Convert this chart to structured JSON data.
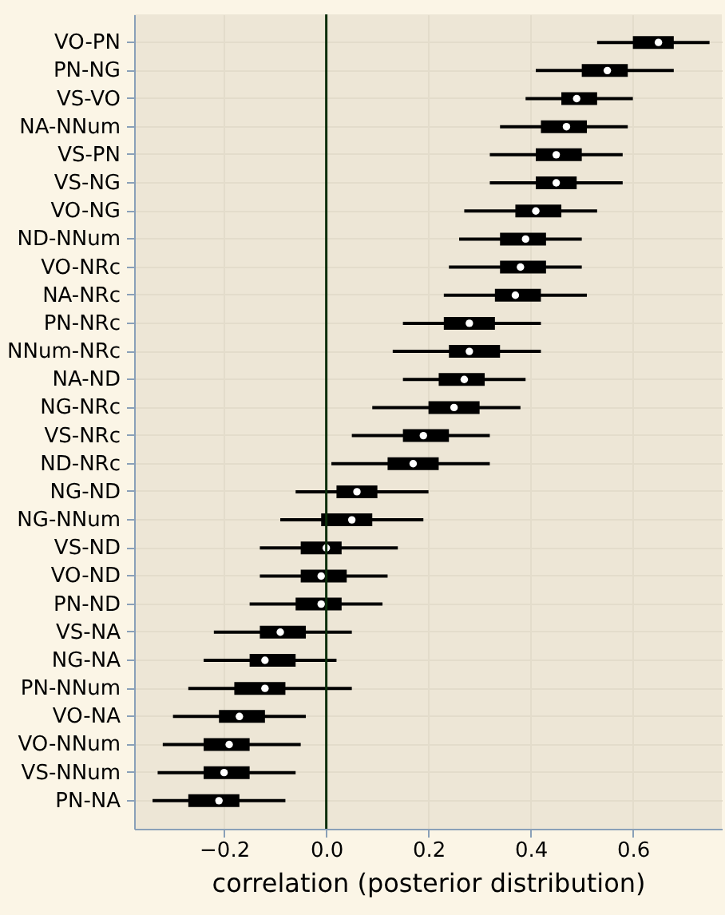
{
  "chart_data": {
    "type": "box",
    "orientation": "horizontal",
    "xlabel": "correlation (posterior distribution)",
    "categories": [
      "VO-PN",
      "PN-NG",
      "VS-VO",
      "NA-NNum",
      "VS-PN",
      "VS-NG",
      "VO-NG",
      "ND-NNum",
      "VO-NRc",
      "NA-NRc",
      "PN-NRc",
      "NNum-NRc",
      "NA-ND",
      "NG-NRc",
      "VS-NRc",
      "ND-NRc",
      "NG-ND",
      "NG-NNum",
      "VS-ND",
      "VO-ND",
      "PN-ND",
      "VS-NA",
      "NG-NA",
      "PN-NNum",
      "VO-NA",
      "VO-NNum",
      "VS-NNum",
      "PN-NA"
    ],
    "series": [
      {
        "color": "#000000",
        "boxes": [
          {
            "low": 0.53,
            "q1": 0.6,
            "median": 0.65,
            "q3": 0.68,
            "high": 0.75
          },
          {
            "low": 0.41,
            "q1": 0.5,
            "median": 0.55,
            "q3": 0.59,
            "high": 0.68
          },
          {
            "low": 0.39,
            "q1": 0.46,
            "median": 0.49,
            "q3": 0.53,
            "high": 0.6
          },
          {
            "low": 0.34,
            "q1": 0.42,
            "median": 0.47,
            "q3": 0.51,
            "high": 0.59
          },
          {
            "low": 0.32,
            "q1": 0.41,
            "median": 0.45,
            "q3": 0.5,
            "high": 0.58
          },
          {
            "low": 0.32,
            "q1": 0.41,
            "median": 0.45,
            "q3": 0.49,
            "high": 0.58
          },
          {
            "low": 0.27,
            "q1": 0.37,
            "median": 0.41,
            "q3": 0.46,
            "high": 0.53
          },
          {
            "low": 0.26,
            "q1": 0.34,
            "median": 0.39,
            "q3": 0.43,
            "high": 0.5
          },
          {
            "low": 0.24,
            "q1": 0.34,
            "median": 0.38,
            "q3": 0.43,
            "high": 0.5
          },
          {
            "low": 0.23,
            "q1": 0.33,
            "median": 0.37,
            "q3": 0.42,
            "high": 0.51
          },
          {
            "low": 0.15,
            "q1": 0.23,
            "median": 0.28,
            "q3": 0.33,
            "high": 0.42
          },
          {
            "low": 0.13,
            "q1": 0.24,
            "median": 0.28,
            "q3": 0.34,
            "high": 0.42
          },
          {
            "low": 0.15,
            "q1": 0.22,
            "median": 0.27,
            "q3": 0.31,
            "high": 0.39
          },
          {
            "low": 0.09,
            "q1": 0.2,
            "median": 0.25,
            "q3": 0.3,
            "high": 0.38
          },
          {
            "low": 0.05,
            "q1": 0.15,
            "median": 0.19,
            "q3": 0.24,
            "high": 0.32
          },
          {
            "low": 0.01,
            "q1": 0.12,
            "median": 0.17,
            "q3": 0.22,
            "high": 0.32
          },
          {
            "low": -0.06,
            "q1": 0.02,
            "median": 0.06,
            "q3": 0.1,
            "high": 0.2
          },
          {
            "low": -0.09,
            "q1": -0.01,
            "median": 0.05,
            "q3": 0.09,
            "high": 0.19
          },
          {
            "low": -0.13,
            "q1": -0.05,
            "median": 0.0,
            "q3": 0.03,
            "high": 0.14
          },
          {
            "low": -0.13,
            "q1": -0.05,
            "median": -0.01,
            "q3": 0.04,
            "high": 0.12
          },
          {
            "low": -0.15,
            "q1": -0.06,
            "median": -0.01,
            "q3": 0.03,
            "high": 0.11
          },
          {
            "low": -0.22,
            "q1": -0.13,
            "median": -0.09,
            "q3": -0.04,
            "high": 0.05
          },
          {
            "low": -0.24,
            "q1": -0.15,
            "median": -0.12,
            "q3": -0.06,
            "high": 0.02
          },
          {
            "low": -0.27,
            "q1": -0.18,
            "median": -0.12,
            "q3": -0.08,
            "high": 0.05
          },
          {
            "low": -0.3,
            "q1": -0.21,
            "median": -0.17,
            "q3": -0.12,
            "high": -0.04
          },
          {
            "low": -0.32,
            "q1": -0.24,
            "median": -0.19,
            "q3": -0.15,
            "high": -0.05
          },
          {
            "low": -0.33,
            "q1": -0.24,
            "median": -0.2,
            "q3": -0.15,
            "high": -0.06
          },
          {
            "low": -0.34,
            "q1": -0.27,
            "median": -0.21,
            "q3": -0.17,
            "high": -0.08
          }
        ]
      }
    ],
    "xlim": [
      -0.376,
      0.774
    ],
    "xticks": [
      {
        "value": -0.2,
        "label": "−0.2"
      },
      {
        "value": 0,
        "label": "0.0"
      },
      {
        "value": 0.2,
        "label": "0.2"
      },
      {
        "value": 0.4,
        "label": "0.4"
      },
      {
        "value": 0.6,
        "label": "0.6"
      }
    ],
    "grid": true,
    "ref_lines": [
      {
        "axis": "x",
        "value": 0,
        "color": "#0b2e0b"
      }
    ]
  }
}
